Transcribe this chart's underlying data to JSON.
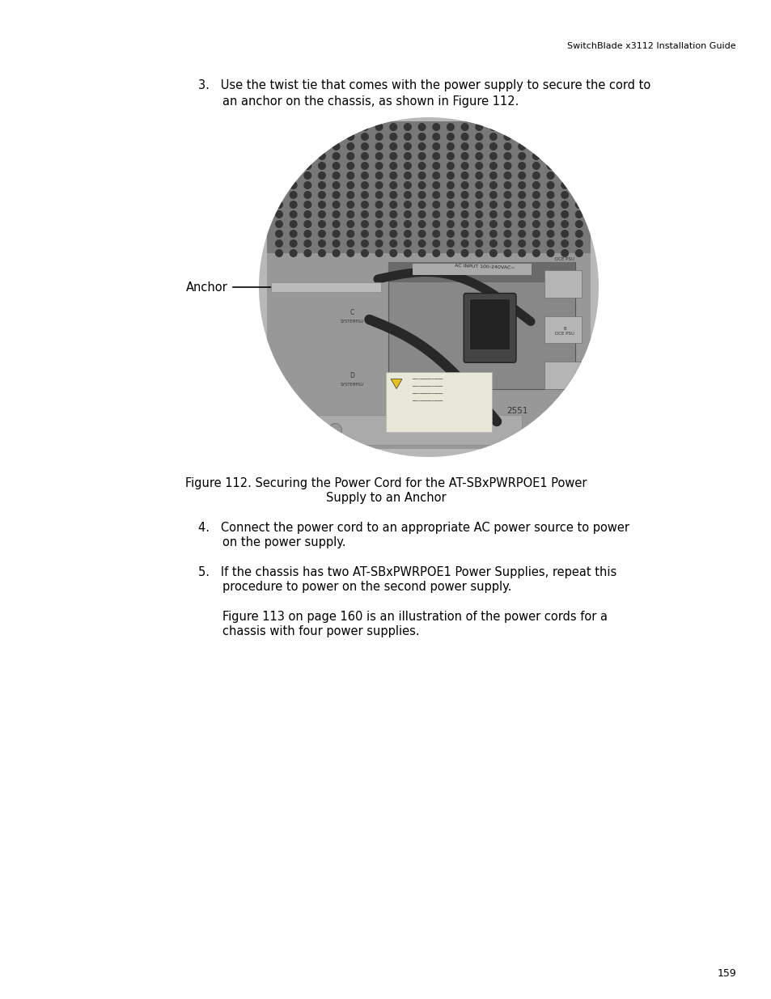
{
  "header_text": "SwitchBlade x3112 Installation Guide",
  "header_font_size": 8,
  "page_number": "159",
  "page_number_font_size": 9,
  "body_font_size": 10.5,
  "caption_font_size": 10.5,
  "item3_text": "3.   Use the twist tie that comes with the power supply to secure the cord to\n     an anchor on the chassis, as shown in Figure 112.",
  "figure_caption_line1": "Figure 112. Securing the Power Cord for the AT-SBxPWRPOE1 Power",
  "figure_caption_line2": "Supply to an Anchor",
  "item4_line1": "4.   Connect the power cord to an appropriate AC power source to power",
  "item4_line2": "     on the power supply.",
  "item5_line1": "5.   If the chassis has two AT-SBxPWRPOE1 Power Supplies, repeat this",
  "item5_line2": "     procedure to power on the second power supply.",
  "item5_extra1": "     Figure 113 on page 160 is an illustration of the power cords for a",
  "item5_extra2": "     chassis with four power supplies.",
  "anchor_label": "Anchor",
  "label_2551": "2551",
  "background_color": "#ffffff",
  "text_color": "#000000",
  "image_color_bg": "#b0b0b0",
  "image_color_perf": "#808080",
  "image_color_panel": "#909090",
  "image_color_dark": "#404040",
  "image_color_dots": "#353535",
  "image_color_light": "#c8c8c8",
  "circle_color": "#b8b8b8"
}
